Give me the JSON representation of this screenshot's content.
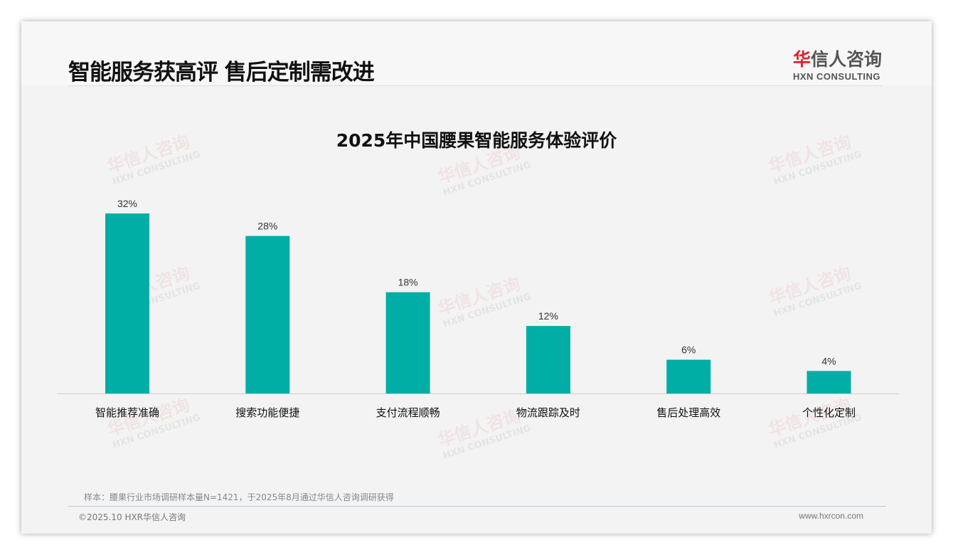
{
  "header": {
    "title": "智能服务获高评 售后定制需改进",
    "logo_cn_red": "华",
    "logo_cn": "信人咨询",
    "logo_en": "HXN CONSULTING"
  },
  "chart_data": {
    "type": "bar",
    "title": "2025年中国腰果智能服务体验评价",
    "categories": [
      "智能推荐准确",
      "搜索功能便捷",
      "支付流程顺畅",
      "物流跟踪及时",
      "售后处理高效",
      "个性化定制"
    ],
    "values": [
      32,
      28,
      18,
      12,
      6,
      4
    ],
    "value_labels": [
      "32%",
      "28%",
      "18%",
      "12%",
      "6%",
      "4%"
    ],
    "unit": "%",
    "ylim": [
      0,
      32
    ],
    "grid": false,
    "bar_color": "#00aea5"
  },
  "footer": {
    "note": "样本：腰果行业市场调研样本量N=1421，于2025年8月通过华信人咨询调研获得",
    "copyright": "©2025.10 HXR华信人咨询",
    "url": "www.hxrcon.com"
  }
}
